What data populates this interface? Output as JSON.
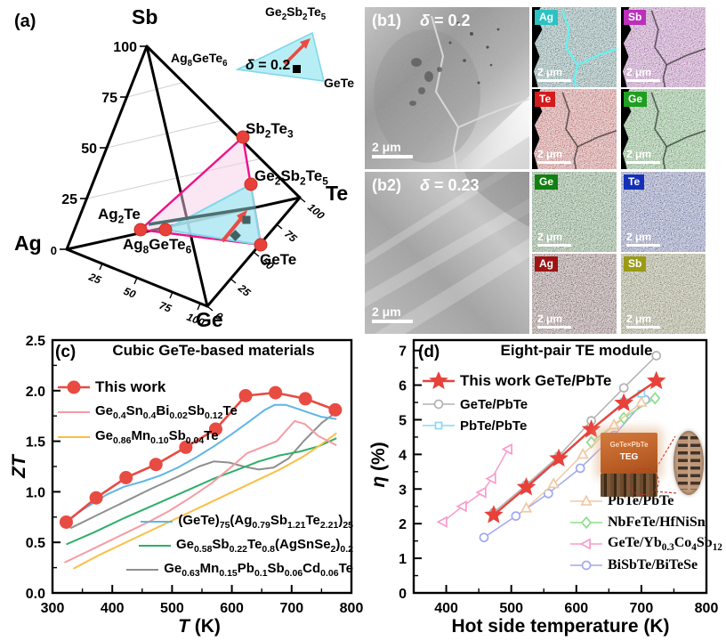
{
  "panel_a": {
    "label": "(a)",
    "vertices": {
      "top": "Sb",
      "left": "Ag",
      "right": "Te",
      "bottom": "Ge"
    },
    "sb_axis_ticks": [
      "0",
      "25",
      "50",
      "75",
      "100"
    ],
    "ag_ge_axis_ticks": [
      "25",
      "50",
      "75",
      "100"
    ],
    "ge_te_axis_ticks": [
      "0",
      "25",
      "50",
      "75",
      "100"
    ],
    "phase_labels": {
      "sb2te3": "Sb<sub>2</sub>Te<sub>3</sub>",
      "ge2sb2te5": "Ge<sub>2</sub>Sb<sub>2</sub>Te<sub>5</sub>",
      "ag2te": "Ag<sub>2</sub>Te",
      "ag8gete6": "Ag<sub>8</sub>GeTe<sub>6</sub>",
      "gete": "GeTe"
    },
    "inset": {
      "top": "Ge<sub>2</sub>Sb<sub>2</sub>Te<sub>5</sub>",
      "left": "Ag<sub>8</sub>GeTe<sub>6</sub>",
      "bottom_right": "GeTe",
      "delta": "<i>&#948;</i> = 0.2"
    },
    "colors": {
      "pink_region": "#ee1289",
      "cyan_region": "#8fdce8",
      "dot": "#e8413a"
    }
  },
  "panel_b1": {
    "label": "(b1)",
    "delta": "<i>&#948;</i> = 0.2",
    "scale_bar": "2 μm",
    "maps": [
      {
        "element": "Ag",
        "chip_color": "#2cc2c2",
        "base": "#063c3c",
        "bright": "#2aa6a6",
        "boundary": "bright"
      },
      {
        "element": "Sb",
        "chip_color": "#bb30bb",
        "base": "#6e1570",
        "bright": "#c344c3",
        "boundary": "dark"
      },
      {
        "element": "Te",
        "chip_color": "#d41a1a",
        "base": "#8c1010",
        "bright": "#e23434",
        "boundary": "dark"
      },
      {
        "element": "Ge",
        "chip_color": "#1f9f1f",
        "base": "#0c5c0c",
        "bright": "#30ba30",
        "boundary": "dark"
      }
    ]
  },
  "panel_b2": {
    "label": "(b2)",
    "delta": "<i>&#948;</i> = 0.23",
    "scale_bar": "2 μm",
    "maps": [
      {
        "element": "Ge",
        "chip_color": "#118011",
        "base": "#073f07",
        "bright": "#1d8a1d",
        "boundary": "none"
      },
      {
        "element": "Te",
        "chip_color": "#1530b8",
        "base": "#0a1560",
        "bright": "#2038c0",
        "boundary": "none"
      },
      {
        "element": "Ag",
        "chip_color": "#9c1414",
        "base": "#2e0606",
        "bright": "#8c1616",
        "boundary": "none"
      },
      {
        "element": "Sb",
        "chip_color": "#9a9a14",
        "base": "#393907",
        "bright": "#8a8a1a",
        "boundary": "none"
      }
    ]
  },
  "panel_d_inset": {
    "line1": "GeTe×PbTe",
    "line2": "TEG"
  },
  "chart_data": [
    {
      "id": "c",
      "type": "line",
      "panel_label": "(c)",
      "title": "Cubic GeTe-based materials",
      "xlabel_html": "<i>T</i> (K)",
      "ylabel_html": "<i>ZT</i>",
      "xlim": [
        300,
        800
      ],
      "ylim": [
        0,
        2.5
      ],
      "xticks": [
        300,
        400,
        500,
        600,
        700,
        800
      ],
      "yticks": [
        0,
        0.5,
        1,
        1.5,
        2,
        2.5
      ],
      "ytick_labels": [
        "0.0",
        "0.5",
        "1.0",
        "1.5",
        "2.0",
        "2.5"
      ],
      "x_minor_step": 50,
      "y_minor_step": 0.25,
      "grid": false,
      "series": [
        {
          "name": "This work",
          "name_html": "This work",
          "color": "#e84b42",
          "marker": "circle-filled",
          "lw": 2.6,
          "msize": 7,
          "x": [
            323,
            373,
            423,
            473,
            523,
            573,
            623,
            673,
            723,
            773
          ],
          "y": [
            0.7,
            0.94,
            1.14,
            1.27,
            1.44,
            1.62,
            1.95,
            1.98,
            1.92,
            1.81
          ]
        },
        {
          "name": "Ge0.4Sn0.4Bi0.02Sb0.12Te",
          "name_html": "Ge<sub>0.4</sub>Sn<sub>0.4</sub>Bi<sub>0.02</sub>Sb<sub>0.12</sub>Te",
          "color": "#f59ba4",
          "marker": "none",
          "lw": 2,
          "x": [
            320,
            355,
            390,
            425,
            460,
            495,
            530,
            565,
            600,
            625,
            650,
            675,
            693,
            705,
            722,
            745,
            775
          ],
          "y": [
            0.3,
            0.4,
            0.5,
            0.6,
            0.7,
            0.81,
            0.94,
            1.08,
            1.25,
            1.38,
            1.44,
            1.5,
            1.62,
            1.7,
            1.67,
            1.55,
            1.46
          ]
        },
        {
          "name": "Ge0.86Mn0.10Sb0.04Te",
          "name_html": "Ge<sub>0.86</sub>Mn<sub>0.10</sub>Sb<sub>0.04</sub>Te",
          "color": "#fcbe45",
          "marker": "none",
          "lw": 2,
          "x": [
            335,
            380,
            430,
            480,
            530,
            580,
            630,
            680,
            720,
            750,
            775
          ],
          "y": [
            0.24,
            0.38,
            0.52,
            0.66,
            0.8,
            0.94,
            1.08,
            1.22,
            1.35,
            1.47,
            1.58
          ]
        },
        {
          "name": "(GeTe)75(Ag0.79Sb1.21Te2.21)25",
          "name_html": "(GeTe)<sub>75</sub>(Ag<sub>0.79</sub>Sb<sub>1.21</sub>Te<sub>2.21</sub>)<sub>25</sub>",
          "color": "#5eb6e6",
          "marker": "none",
          "lw": 2,
          "x": [
            323,
            355,
            390,
            420,
            450,
            480,
            510,
            540,
            570,
            600,
            630,
            655,
            672,
            690,
            710,
            730,
            750,
            775
          ],
          "y": [
            0.71,
            0.84,
            0.97,
            1.05,
            1.1,
            1.16,
            1.24,
            1.34,
            1.45,
            1.57,
            1.7,
            1.81,
            1.86,
            1.86,
            1.82,
            1.78,
            1.74,
            1.72
          ]
        },
        {
          "name": "Ge0.58Sb0.22Te0.8(AgSnSe2)0.2",
          "name_html": "Ge<sub>0.58</sub>Sb<sub>0.22</sub>Te<sub>0.8</sub>(AgSnSe<sub>2</sub>)<sub>0.2</sub>",
          "color": "#2fae69",
          "marker": "none",
          "lw": 2,
          "x": [
            323,
            370,
            420,
            470,
            520,
            570,
            610,
            645,
            680,
            715,
            745,
            775
          ],
          "y": [
            0.48,
            0.6,
            0.74,
            0.87,
            1.0,
            1.13,
            1.22,
            1.3,
            1.36,
            1.4,
            1.45,
            1.53
          ]
        },
        {
          "name": "Ge0.63Mn0.15Pb0.1Sb0.06Cd0.06Te",
          "name_html": "Ge<sub>0.63</sub>Mn<sub>0.15</sub>Pb<sub>0.1</sub>Sb<sub>0.06</sub>Cd<sub>0.06</sub>Te",
          "color": "#8f8f8f",
          "marker": "none",
          "lw": 2,
          "x": [
            330,
            375,
            420,
            465,
            510,
            545,
            570,
            595,
            620,
            645,
            670,
            695,
            720,
            750,
            775
          ],
          "y": [
            0.64,
            0.77,
            0.9,
            1.03,
            1.15,
            1.25,
            1.3,
            1.29,
            1.25,
            1.22,
            1.24,
            1.33,
            1.5,
            1.68,
            1.79
          ]
        }
      ]
    },
    {
      "id": "d",
      "type": "line",
      "panel_label": "(d)",
      "title": "Eight-pair TE module",
      "xlabel_html": "Hot side temperature (K)",
      "ylabel_html": "<i>&#951;</i> (%)",
      "xlim": [
        350,
        800
      ],
      "ylim": [
        0,
        7.3
      ],
      "xticks": [
        400,
        500,
        600,
        700,
        800
      ],
      "yticks": [
        0,
        1,
        2,
        3,
        4,
        5,
        6,
        7
      ],
      "ytick_labels": [
        "0",
        "1",
        "2",
        "3",
        "4",
        "5",
        "6",
        "7"
      ],
      "x_minor_step": 50,
      "y_minor_step": 0.5,
      "grid": false,
      "series": [
        {
          "name": "This work GeTe/PbTe",
          "name_html": "This work GeTe/PbTe",
          "color": "#e8413a",
          "marker": "star-filled",
          "lw": 2.4,
          "msize": 10,
          "x": [
            473,
            523,
            573,
            623,
            673,
            723
          ],
          "y": [
            2.25,
            3.05,
            3.88,
            4.72,
            5.48,
            6.12
          ]
        },
        {
          "name": "GeTe/PbTe",
          "name_html": "GeTe/PbTe",
          "color": "#b2b2b2",
          "marker": "circle-open",
          "lw": 1.5,
          "msize": 4.5,
          "x": [
            473,
            523,
            573,
            623,
            673,
            723
          ],
          "y": [
            2.32,
            3.12,
            3.95,
            4.97,
            5.92,
            6.85
          ]
        },
        {
          "name": "PbTe/PbTe",
          "name_html": "PbTe/PbTe",
          "color": "#8ed8ee",
          "marker": "square-open",
          "lw": 1.5,
          "msize": 7,
          "x": [
            523,
            573,
            623,
            673,
            700
          ],
          "y": [
            3.0,
            3.85,
            4.7,
            5.52,
            5.75
          ]
        },
        {
          "name": "PbTe/PbTe",
          "name_html": "PbTe/PbTe",
          "color": "#f0c9a2",
          "marker": "triangle-open",
          "lw": 1.5,
          "msize": 9,
          "x": [
            523,
            565,
            610,
            658,
            700
          ],
          "y": [
            2.45,
            3.15,
            4.0,
            4.85,
            5.5
          ]
        },
        {
          "name": "NbFeTe/HfNiSn",
          "name_html": "NbFeTe/HfNiSn",
          "color": "#8ddd8d",
          "marker": "diamond-open",
          "lw": 1.5,
          "msize": 9,
          "x": [
            623,
            673,
            721
          ],
          "y": [
            4.35,
            5.05,
            5.62
          ]
        },
        {
          "name": "GeTe/Yb0.3Co4Sb12",
          "name_html": "GeTe/Yb<sub>0.3</sub>Co<sub>4</sub>Sb<sub>12</sub>",
          "color": "#f99ccb",
          "marker": "tri-left-open",
          "lw": 1.5,
          "msize": 9,
          "x": [
            395,
            425,
            455,
            470,
            495
          ],
          "y": [
            2.05,
            2.5,
            2.9,
            3.3,
            4.15
          ]
        },
        {
          "name": "BiSbTe/BiTeSe",
          "name_html": "BiSbTe/BiTeSe",
          "color": "#9fa8ef",
          "marker": "circle-open",
          "lw": 1.5,
          "msize": 4.5,
          "x": [
            458,
            507,
            557,
            606,
            658,
            706
          ],
          "y": [
            1.6,
            2.22,
            2.87,
            3.6,
            4.55,
            5.58
          ]
        }
      ]
    }
  ]
}
